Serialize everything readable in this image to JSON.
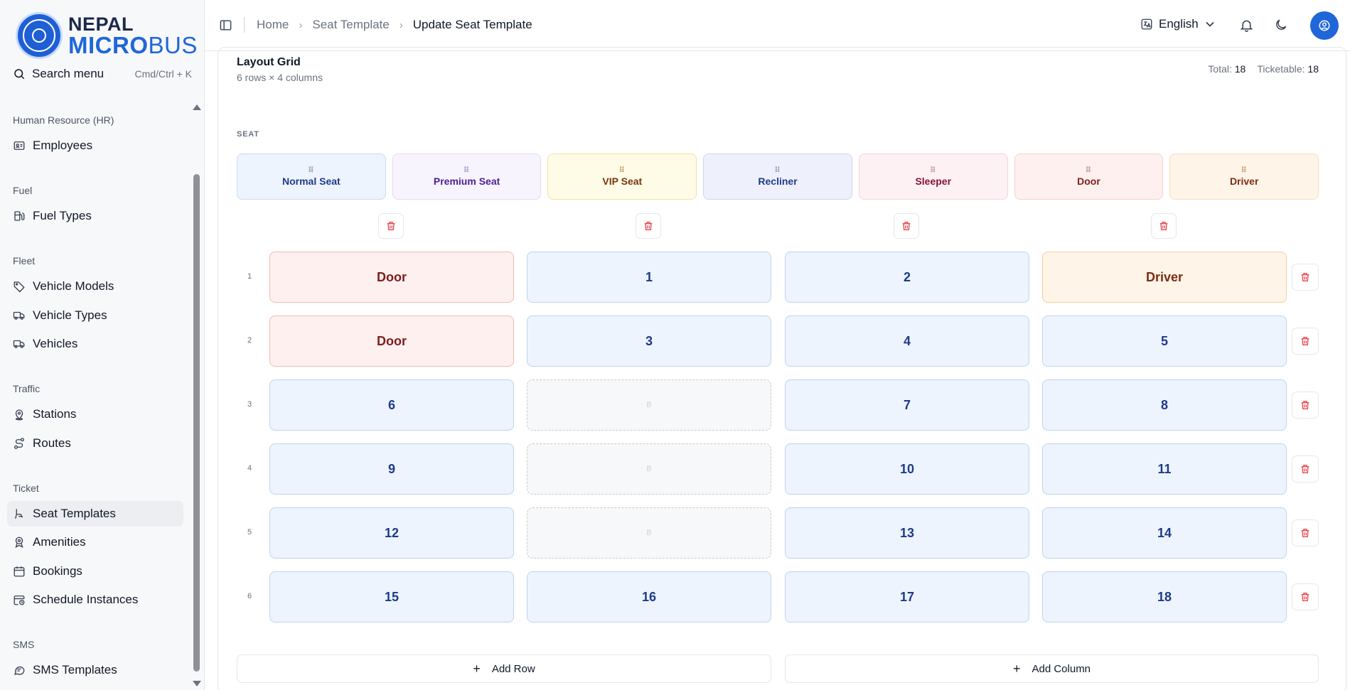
{
  "brand": {
    "line1": "NEPAL",
    "line2_a": "MICRO",
    "line2_b": "BUS"
  },
  "search": {
    "label": "Search menu",
    "shortcut": "Cmd/Ctrl + K"
  },
  "nav": {
    "groups": [
      {
        "label": "Human Resource (HR)"
      },
      {
        "label": "Fuel"
      },
      {
        "label": "Fleet"
      },
      {
        "label": "Traffic"
      },
      {
        "label": "Ticket"
      },
      {
        "label": "SMS"
      }
    ],
    "items": {
      "employees": "Employees",
      "fuel_types": "Fuel Types",
      "vehicle_models": "Vehicle Models",
      "vehicle_types": "Vehicle Types",
      "vehicles": "Vehicles",
      "stations": "Stations",
      "routes": "Routes",
      "seat_templates": "Seat Templates",
      "amenities": "Amenities",
      "bookings": "Bookings",
      "schedule_instances": "Schedule Instances",
      "sms_templates": "SMS Templates"
    },
    "active": "seat_templates"
  },
  "header": {
    "breadcrumbs": [
      "Home",
      "Seat Template",
      "Update Seat Template"
    ],
    "language": "English"
  },
  "layout_grid": {
    "title": "Layout Grid",
    "subtitle": "6 rows × 4 columns",
    "total_label": "Total:",
    "total_value": "18",
    "ticketable_label": "Ticketable:",
    "ticketable_value": "18"
  },
  "palette": {
    "section_label": "SEAT",
    "items": [
      "Normal Seat",
      "Premium Seat",
      "VIP Seat",
      "Recliner",
      "Sleeper",
      "Door",
      "Driver"
    ],
    "colors": {
      "normal": "#edf4fd",
      "premium": "#f8f4fe",
      "vip": "#fefbe6",
      "recliner": "#eef1fb",
      "sleeper": "#fdf1f4",
      "door": "#fef0ef",
      "driver": "#fff4e8"
    }
  },
  "grid": {
    "rows": [
      {
        "num": "1",
        "cells": [
          {
            "type": "door",
            "label": "Door"
          },
          {
            "type": "seat",
            "label": "1"
          },
          {
            "type": "seat",
            "label": "2"
          },
          {
            "type": "driver",
            "label": "Driver"
          }
        ]
      },
      {
        "num": "2",
        "cells": [
          {
            "type": "door",
            "label": "Door"
          },
          {
            "type": "seat",
            "label": "3"
          },
          {
            "type": "seat",
            "label": "4"
          },
          {
            "type": "seat",
            "label": "5"
          }
        ]
      },
      {
        "num": "3",
        "cells": [
          {
            "type": "seat",
            "label": "6"
          },
          {
            "type": "aisle",
            "label": "B"
          },
          {
            "type": "seat",
            "label": "7"
          },
          {
            "type": "seat",
            "label": "8"
          }
        ]
      },
      {
        "num": "4",
        "cells": [
          {
            "type": "seat",
            "label": "9"
          },
          {
            "type": "aisle",
            "label": "B"
          },
          {
            "type": "seat",
            "label": "10"
          },
          {
            "type": "seat",
            "label": "11"
          }
        ]
      },
      {
        "num": "5",
        "cells": [
          {
            "type": "seat",
            "label": "12"
          },
          {
            "type": "aisle",
            "label": "B"
          },
          {
            "type": "seat",
            "label": "13"
          },
          {
            "type": "seat",
            "label": "14"
          }
        ]
      },
      {
        "num": "6",
        "cells": [
          {
            "type": "seat",
            "label": "15"
          },
          {
            "type": "seat",
            "label": "16"
          },
          {
            "type": "seat",
            "label": "17"
          },
          {
            "type": "seat",
            "label": "18"
          }
        ]
      }
    ]
  },
  "actions": {
    "add_row": "Add Row",
    "add_column": "Add Column"
  },
  "colors": {
    "accent": "#1f66d9",
    "delete_red": "#e5484d"
  }
}
